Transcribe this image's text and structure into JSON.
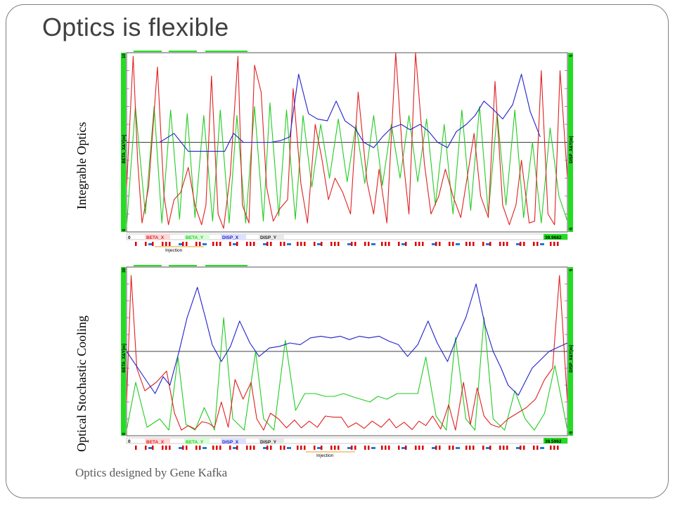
{
  "slide": {
    "title": "Optics is flexible",
    "caption": "Optics designed by Gene Kafka"
  },
  "colors": {
    "beta_x": "#e02020",
    "beta_y": "#22cc22",
    "disp": "#2020cc",
    "axis_green": "#22dd22",
    "element_red": "#dd0000",
    "element_blue": "#2277dd",
    "injection": "#e0a020"
  },
  "chart_data": [
    {
      "type": "line",
      "row_label": "Integrable Optics",
      "yleft_label": "BETA_X&Y[m]",
      "yright_label": "DISP_X&Y[m]",
      "yleft_ticks": [
        "10",
        "0"
      ],
      "yright_ticks": [
        "5",
        "-5"
      ],
      "ylim_left": [
        0,
        10
      ],
      "ylim_right": [
        -5,
        5
      ],
      "x_start_label": "0",
      "x_end_label": "39.9682",
      "xlim": [
        0,
        39.9682
      ],
      "legend": [
        "BETA_X",
        "BETA_Y",
        "DISP_X",
        "DISP_Y"
      ],
      "marker_label": "Injection",
      "series": [
        {
          "name": "BETA_X",
          "x": [
            0.0,
            0.6,
            1.0,
            1.4,
            2.0,
            2.8,
            3.4,
            3.8,
            4.3,
            4.9,
            5.6,
            6.2,
            6.8,
            7.2,
            7.7,
            8.3,
            8.8,
            9.4,
            10.1,
            10.5,
            11.1,
            11.6,
            12.2,
            12.7,
            13.3,
            13.9,
            14.6,
            15.1,
            15.8,
            16.4,
            17.1,
            17.7,
            18.3,
            18.9,
            19.6,
            20.3,
            21.0,
            21.8,
            22.4,
            22.9,
            23.6,
            24.4,
            25.0,
            25.6,
            26.2,
            27.0,
            27.6,
            28.3,
            28.9,
            29.6,
            30.3,
            30.9,
            31.5,
            32.1,
            32.8,
            33.4,
            34.1,
            34.7,
            35.3,
            35.8,
            36.5,
            37.0,
            37.6,
            38.2,
            38.8,
            39.3,
            39.9682
          ],
          "values": [
            2.5,
            9.8,
            4.0,
            0.5,
            2.5,
            9.2,
            2.0,
            0.4,
            1.8,
            2.2,
            3.6,
            1.5,
            0.4,
            1.5,
            8.7,
            1.0,
            0.2,
            3.2,
            9.8,
            1.5,
            0.5,
            9.3,
            7.8,
            2.5,
            0.6,
            1.3,
            1.8,
            8.0,
            2.7,
            0.5,
            6.0,
            4.1,
            1.8,
            3.0,
            2.2,
            1.0,
            7.8,
            2.8,
            1.0,
            3.5,
            0.5,
            10.0,
            4.5,
            1.0,
            10.0,
            3.8,
            1.0,
            2.0,
            3.5,
            2.0,
            0.8,
            3.1,
            5.5,
            2.0,
            0.8,
            8.4,
            1.5,
            0.4,
            1.5,
            4.0,
            0.5,
            0.6,
            9.0,
            1.0,
            0.4,
            9.0,
            3.0
          ]
        },
        {
          "name": "BETA_Y",
          "x": [
            0.0,
            0.8,
            1.7,
            2.5,
            3.2,
            4.0,
            4.8,
            5.5,
            6.2,
            7.0,
            7.8,
            8.5,
            9.3,
            10.0,
            10.8,
            11.6,
            12.4,
            13.0,
            13.8,
            14.5,
            15.3,
            16.0,
            16.8,
            17.6,
            18.4,
            19.2,
            20.0,
            20.8,
            21.6,
            22.4,
            23.2,
            24.0,
            24.8,
            25.6,
            26.4,
            27.2,
            28.0,
            28.8,
            29.6,
            30.4,
            31.2,
            32.0,
            32.8,
            33.6,
            34.4,
            35.2,
            36.0,
            36.8,
            37.6,
            38.4,
            39.2,
            39.9682
          ],
          "values": [
            0.3,
            7.0,
            1.0,
            7.0,
            0.5,
            6.8,
            0.7,
            6.6,
            0.8,
            6.5,
            0.6,
            6.8,
            0.5,
            6.5,
            0.5,
            7.0,
            0.6,
            7.2,
            0.9,
            6.8,
            0.7,
            6.5,
            2.5,
            6.0,
            3.0,
            6.3,
            2.8,
            6.0,
            2.7,
            6.5,
            2.6,
            6.0,
            3.0,
            6.5,
            2.8,
            6.3,
            1.5,
            6.0,
            1.0,
            6.8,
            1.2,
            7.0,
            1.0,
            6.6,
            1.5,
            6.8,
            0.8,
            5.0,
            0.5,
            5.8,
            2.0,
            0.6
          ]
        },
        {
          "name": "DISP_X",
          "x": [
            3.0,
            4.3,
            5.6,
            6.4,
            7.2,
            8.1,
            8.9,
            9.7,
            10.6,
            11.4,
            12.3,
            13.1,
            14.0,
            14.8,
            15.6,
            16.5,
            17.3,
            18.2,
            19.0,
            19.8,
            20.7,
            21.5,
            22.4,
            23.2,
            24.0,
            24.9,
            25.7,
            26.6,
            27.4,
            28.2,
            29.1,
            29.9,
            30.8,
            31.6,
            32.4,
            33.3,
            34.1,
            35.0,
            35.8,
            36.6,
            37.5
          ],
          "values": [
            0.0,
            0.5,
            -0.5,
            -0.5,
            -0.5,
            -0.5,
            -0.5,
            0.5,
            0.0,
            0.0,
            0.0,
            0.0,
            0.1,
            0.3,
            3.8,
            1.6,
            1.3,
            1.2,
            2.3,
            1.2,
            0.8,
            0.0,
            -0.3,
            0.3,
            0.8,
            1.0,
            0.7,
            1.0,
            0.6,
            0.0,
            -0.3,
            0.6,
            1.0,
            1.5,
            2.3,
            1.8,
            1.3,
            2.1,
            3.8,
            1.7,
            0.3
          ]
        }
      ]
    },
    {
      "type": "line",
      "row_label": "Optical Stochastic Cooling",
      "yleft_label": "BETA_X&Y[m]",
      "yright_label": "DISP_X&Y[m]",
      "yleft_ticks": [
        "30",
        "0"
      ],
      "yright_ticks": [
        "5",
        "-5"
      ],
      "ylim_left": [
        0,
        30
      ],
      "ylim_right": [
        -5,
        5
      ],
      "x_start_label": "0",
      "x_end_label": "38.5982",
      "xlim": [
        0,
        38.5982
      ],
      "legend": [
        "BETA_X",
        "BETA_Y",
        "DISP_X",
        "DISP_Y"
      ],
      "marker_label": "Injection",
      "series": [
        {
          "name": "BETA_X",
          "x": [
            0.0,
            0.4,
            0.9,
            1.6,
            2.6,
            3.5,
            4.2,
            4.8,
            5.4,
            6.0,
            6.6,
            7.2,
            7.7,
            8.3,
            8.9,
            9.5,
            10.2,
            10.9,
            11.4,
            12.0,
            12.6,
            13.3,
            14.0,
            14.7,
            15.3,
            16.0,
            16.7,
            17.4,
            18.1,
            18.8,
            19.4,
            20.1,
            20.8,
            21.5,
            22.3,
            23.0,
            23.6,
            24.3,
            25.0,
            25.6,
            26.2,
            26.8,
            27.5,
            28.2,
            28.8,
            29.5,
            30.1,
            30.7,
            31.3,
            31.9,
            32.6,
            33.4,
            34.2,
            35.0,
            35.8,
            36.6,
            37.3,
            37.9,
            38.5982
          ],
          "values": [
            6.0,
            28.5,
            12.0,
            8.0,
            9.5,
            11.5,
            4.0,
            1.0,
            1.8,
            1.2,
            2.5,
            2.2,
            1.5,
            6.0,
            1.5,
            10.0,
            6.5,
            9.5,
            3.0,
            1.0,
            4.0,
            3.0,
            1.4,
            2.8,
            1.4,
            2.6,
            1.5,
            3.5,
            3.3,
            3.3,
            1.5,
            2.3,
            1.3,
            2.6,
            1.5,
            3.0,
            1.4,
            2.4,
            1.1,
            2.6,
            1.8,
            3.5,
            1.2,
            5.5,
            1.0,
            9.5,
            2.0,
            8.5,
            3.5,
            2.0,
            1.5,
            3.0,
            4.0,
            5.0,
            6.5,
            10.0,
            12.0,
            28.5,
            6.0
          ]
        },
        {
          "name": "BETA_Y",
          "x": [
            0.0,
            0.8,
            1.8,
            2.9,
            3.7,
            4.5,
            5.2,
            6.0,
            6.8,
            7.7,
            8.5,
            9.3,
            10.3,
            11.3,
            12.0,
            12.9,
            13.9,
            14.8,
            15.6,
            16.5,
            17.4,
            18.2,
            19.0,
            19.7,
            20.5,
            21.3,
            22.0,
            22.8,
            23.7,
            24.7,
            25.5,
            26.2,
            27.1,
            28.0,
            28.8,
            29.7,
            30.5,
            31.3,
            32.1,
            33.1,
            34.0,
            34.9,
            35.7,
            36.6,
            37.5,
            38.5982
          ],
          "values": [
            1.0,
            9.5,
            1.5,
            3.0,
            1.0,
            14.0,
            2.0,
            1.0,
            5.0,
            1.0,
            21.0,
            3.0,
            1.0,
            15.0,
            3.0,
            1.0,
            17.0,
            4.5,
            7.5,
            7.5,
            7.0,
            7.0,
            7.5,
            7.0,
            6.5,
            6.0,
            7.0,
            6.5,
            7.5,
            7.5,
            7.5,
            14.0,
            3.5,
            1.0,
            17.5,
            3.0,
            1.0,
            21.0,
            3.0,
            1.0,
            8.0,
            3.0,
            1.0,
            4.0,
            12.5,
            1.0
          ]
        },
        {
          "name": "DISP_X",
          "x": [
            0.0,
            1.5,
            2.5,
            3.2,
            3.8,
            4.6,
            5.3,
            6.2,
            6.9,
            7.5,
            8.3,
            9.1,
            9.9,
            10.8,
            11.6,
            12.5,
            13.4,
            14.3,
            15.2,
            16.1,
            17.0,
            17.9,
            18.7,
            19.5,
            20.4,
            21.2,
            22.1,
            23.0,
            23.8,
            24.6,
            25.5,
            26.4,
            27.2,
            28.1,
            28.9,
            29.7,
            30.6,
            31.4,
            32.1,
            32.8,
            33.4,
            34.3,
            35.5,
            37.0,
            38.5982
          ],
          "values": [
            0.0,
            -1.5,
            -2.5,
            -1.5,
            -2.0,
            0.0,
            2.0,
            3.8,
            2.0,
            0.4,
            -0.6,
            0.3,
            1.8,
            0.5,
            -0.3,
            0.2,
            0.3,
            0.5,
            0.4,
            0.8,
            0.9,
            0.8,
            0.9,
            0.7,
            0.9,
            0.8,
            0.9,
            0.6,
            0.4,
            -0.3,
            0.4,
            1.8,
            0.5,
            -0.6,
            0.8,
            2.0,
            4.0,
            1.5,
            0.0,
            -1.0,
            -2.0,
            -2.6,
            -1.0,
            0.0,
            0.5
          ]
        }
      ]
    }
  ]
}
